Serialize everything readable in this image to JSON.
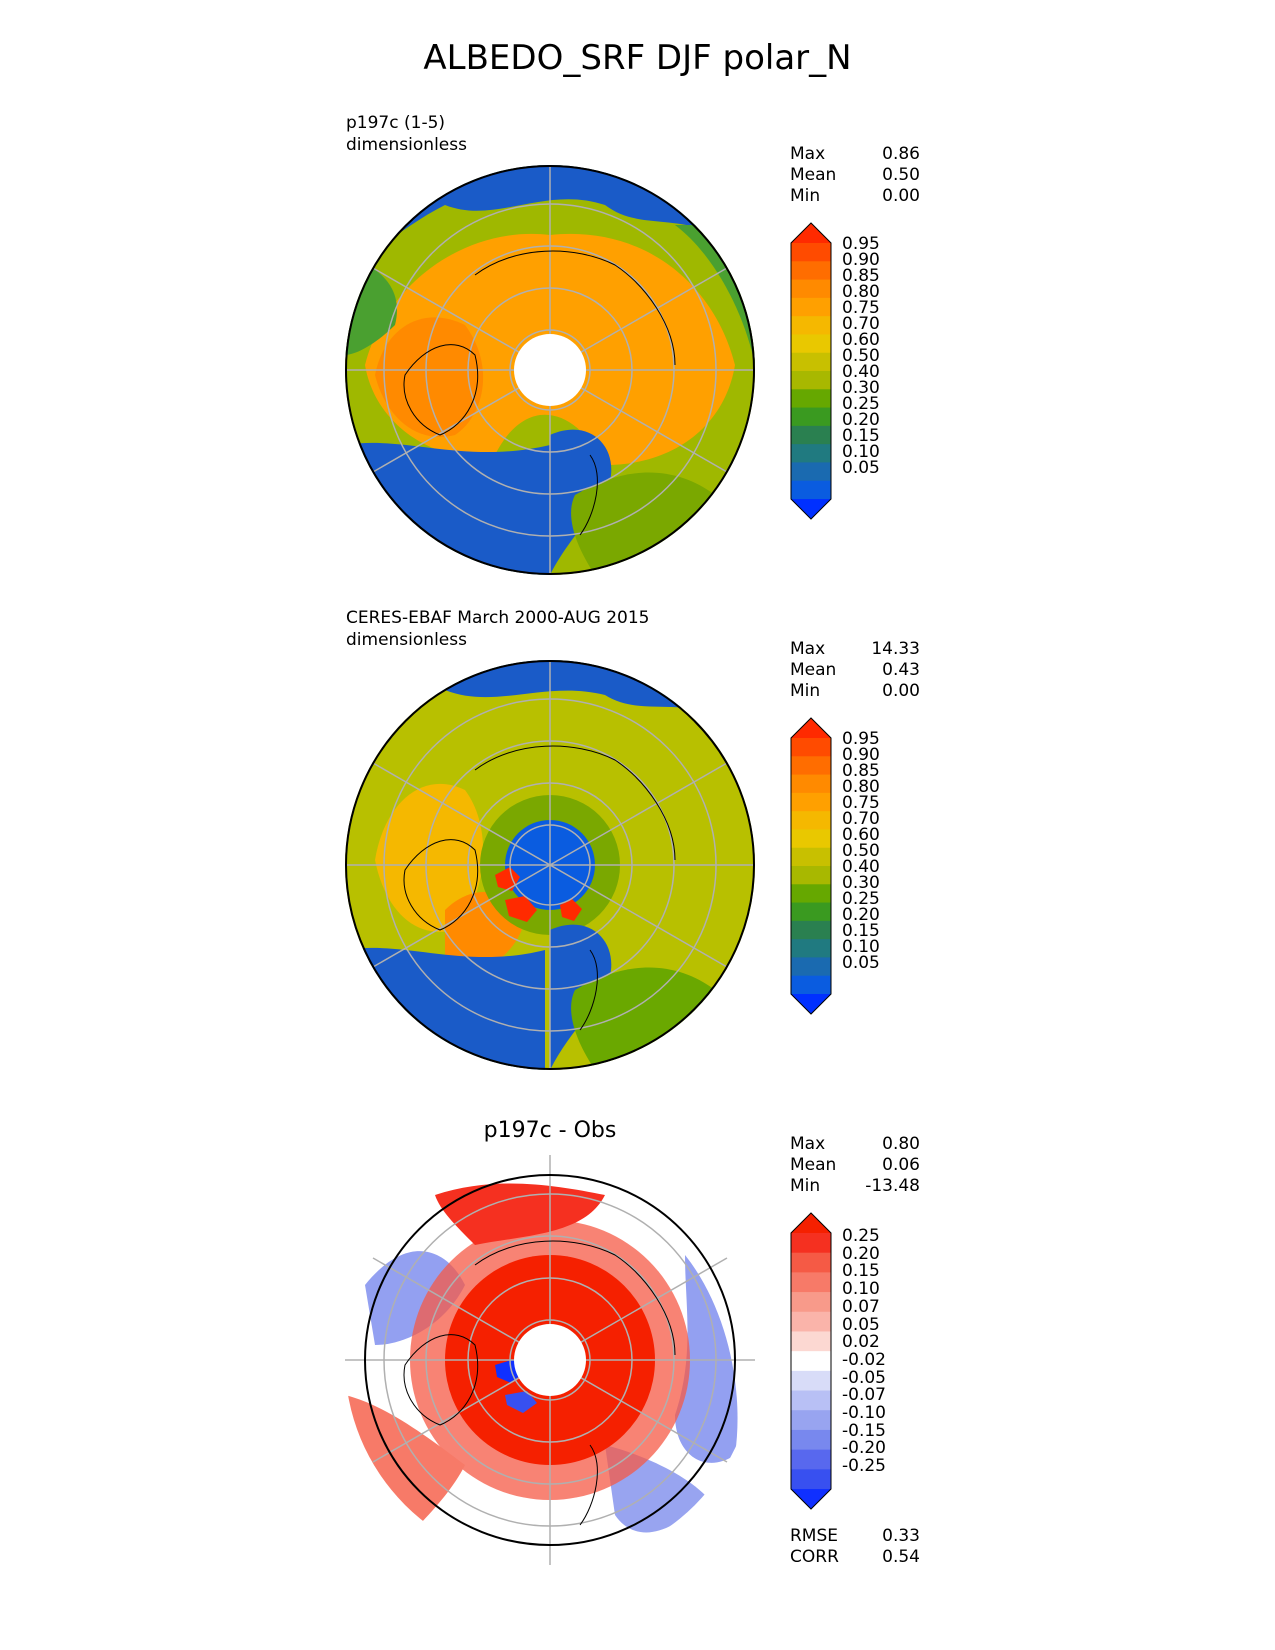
{
  "title": "ALBEDO_SRF DJF polar_N",
  "panels": [
    {
      "label_line1": "p197c (1-5)",
      "label_line2": "dimensionless",
      "stats": [
        {
          "name": "Max",
          "value": "0.86"
        },
        {
          "name": "Mean",
          "value": "0.50"
        },
        {
          "name": "Min",
          "value": "0.00"
        }
      ],
      "colorbar_ticks": [
        "0.95",
        "0.90",
        "0.85",
        "0.80",
        "0.75",
        "0.70",
        "0.60",
        "0.50",
        "0.40",
        "0.30",
        "0.25",
        "0.20",
        "0.15",
        "0.10",
        "0.05"
      ]
    },
    {
      "label_line1": "CERES-EBAF March 2000-AUG 2015",
      "label_line2": "dimensionless",
      "stats": [
        {
          "name": "Max",
          "value": "14.33"
        },
        {
          "name": "Mean",
          "value": "0.43"
        },
        {
          "name": "Min",
          "value": "0.00"
        }
      ],
      "colorbar_ticks": [
        "0.95",
        "0.90",
        "0.85",
        "0.80",
        "0.75",
        "0.70",
        "0.60",
        "0.50",
        "0.40",
        "0.30",
        "0.25",
        "0.20",
        "0.15",
        "0.10",
        "0.05"
      ]
    },
    {
      "title": "p197c - Obs",
      "stats": [
        {
          "name": "Max",
          "value": "0.80"
        },
        {
          "name": "Mean",
          "value": "0.06"
        },
        {
          "name": "Min",
          "value": "-13.48"
        }
      ],
      "colorbar_ticks": [
        "0.25",
        "0.20",
        "0.15",
        "0.10",
        "0.07",
        "0.05",
        "0.02",
        "-0.02",
        "-0.05",
        "-0.07",
        "-0.10",
        "-0.15",
        "-0.20",
        "-0.25"
      ],
      "metrics": [
        {
          "name": "RMSE",
          "value": "0.33"
        },
        {
          "name": "CORR",
          "value": "0.54"
        }
      ]
    }
  ],
  "colors": {
    "albedo_scale": [
      "#ff2a00",
      "#ff4b00",
      "#ff6d00",
      "#ff8a00",
      "#ffa000",
      "#f5b800",
      "#e9c800",
      "#c8c000",
      "#a8b800",
      "#66a800",
      "#3a9a20",
      "#2a8050",
      "#207a80",
      "#1a6ab0",
      "#0a5ce0",
      "#0030ff"
    ],
    "diff_scale": [
      "#f52000",
      "#f53020",
      "#f55a45",
      "#f77a68",
      "#f89a8a",
      "#fab4aa",
      "#fcd8d2",
      "#ffffff",
      "#d8dcf8",
      "#b8c0f5",
      "#98a4f0",
      "#7888ee",
      "#5868ee",
      "#3850f0",
      "#1030ff"
    ],
    "ocean_blue": "#1a5bc8",
    "grid": "#b0b0b0",
    "coast": "#000000"
  }
}
